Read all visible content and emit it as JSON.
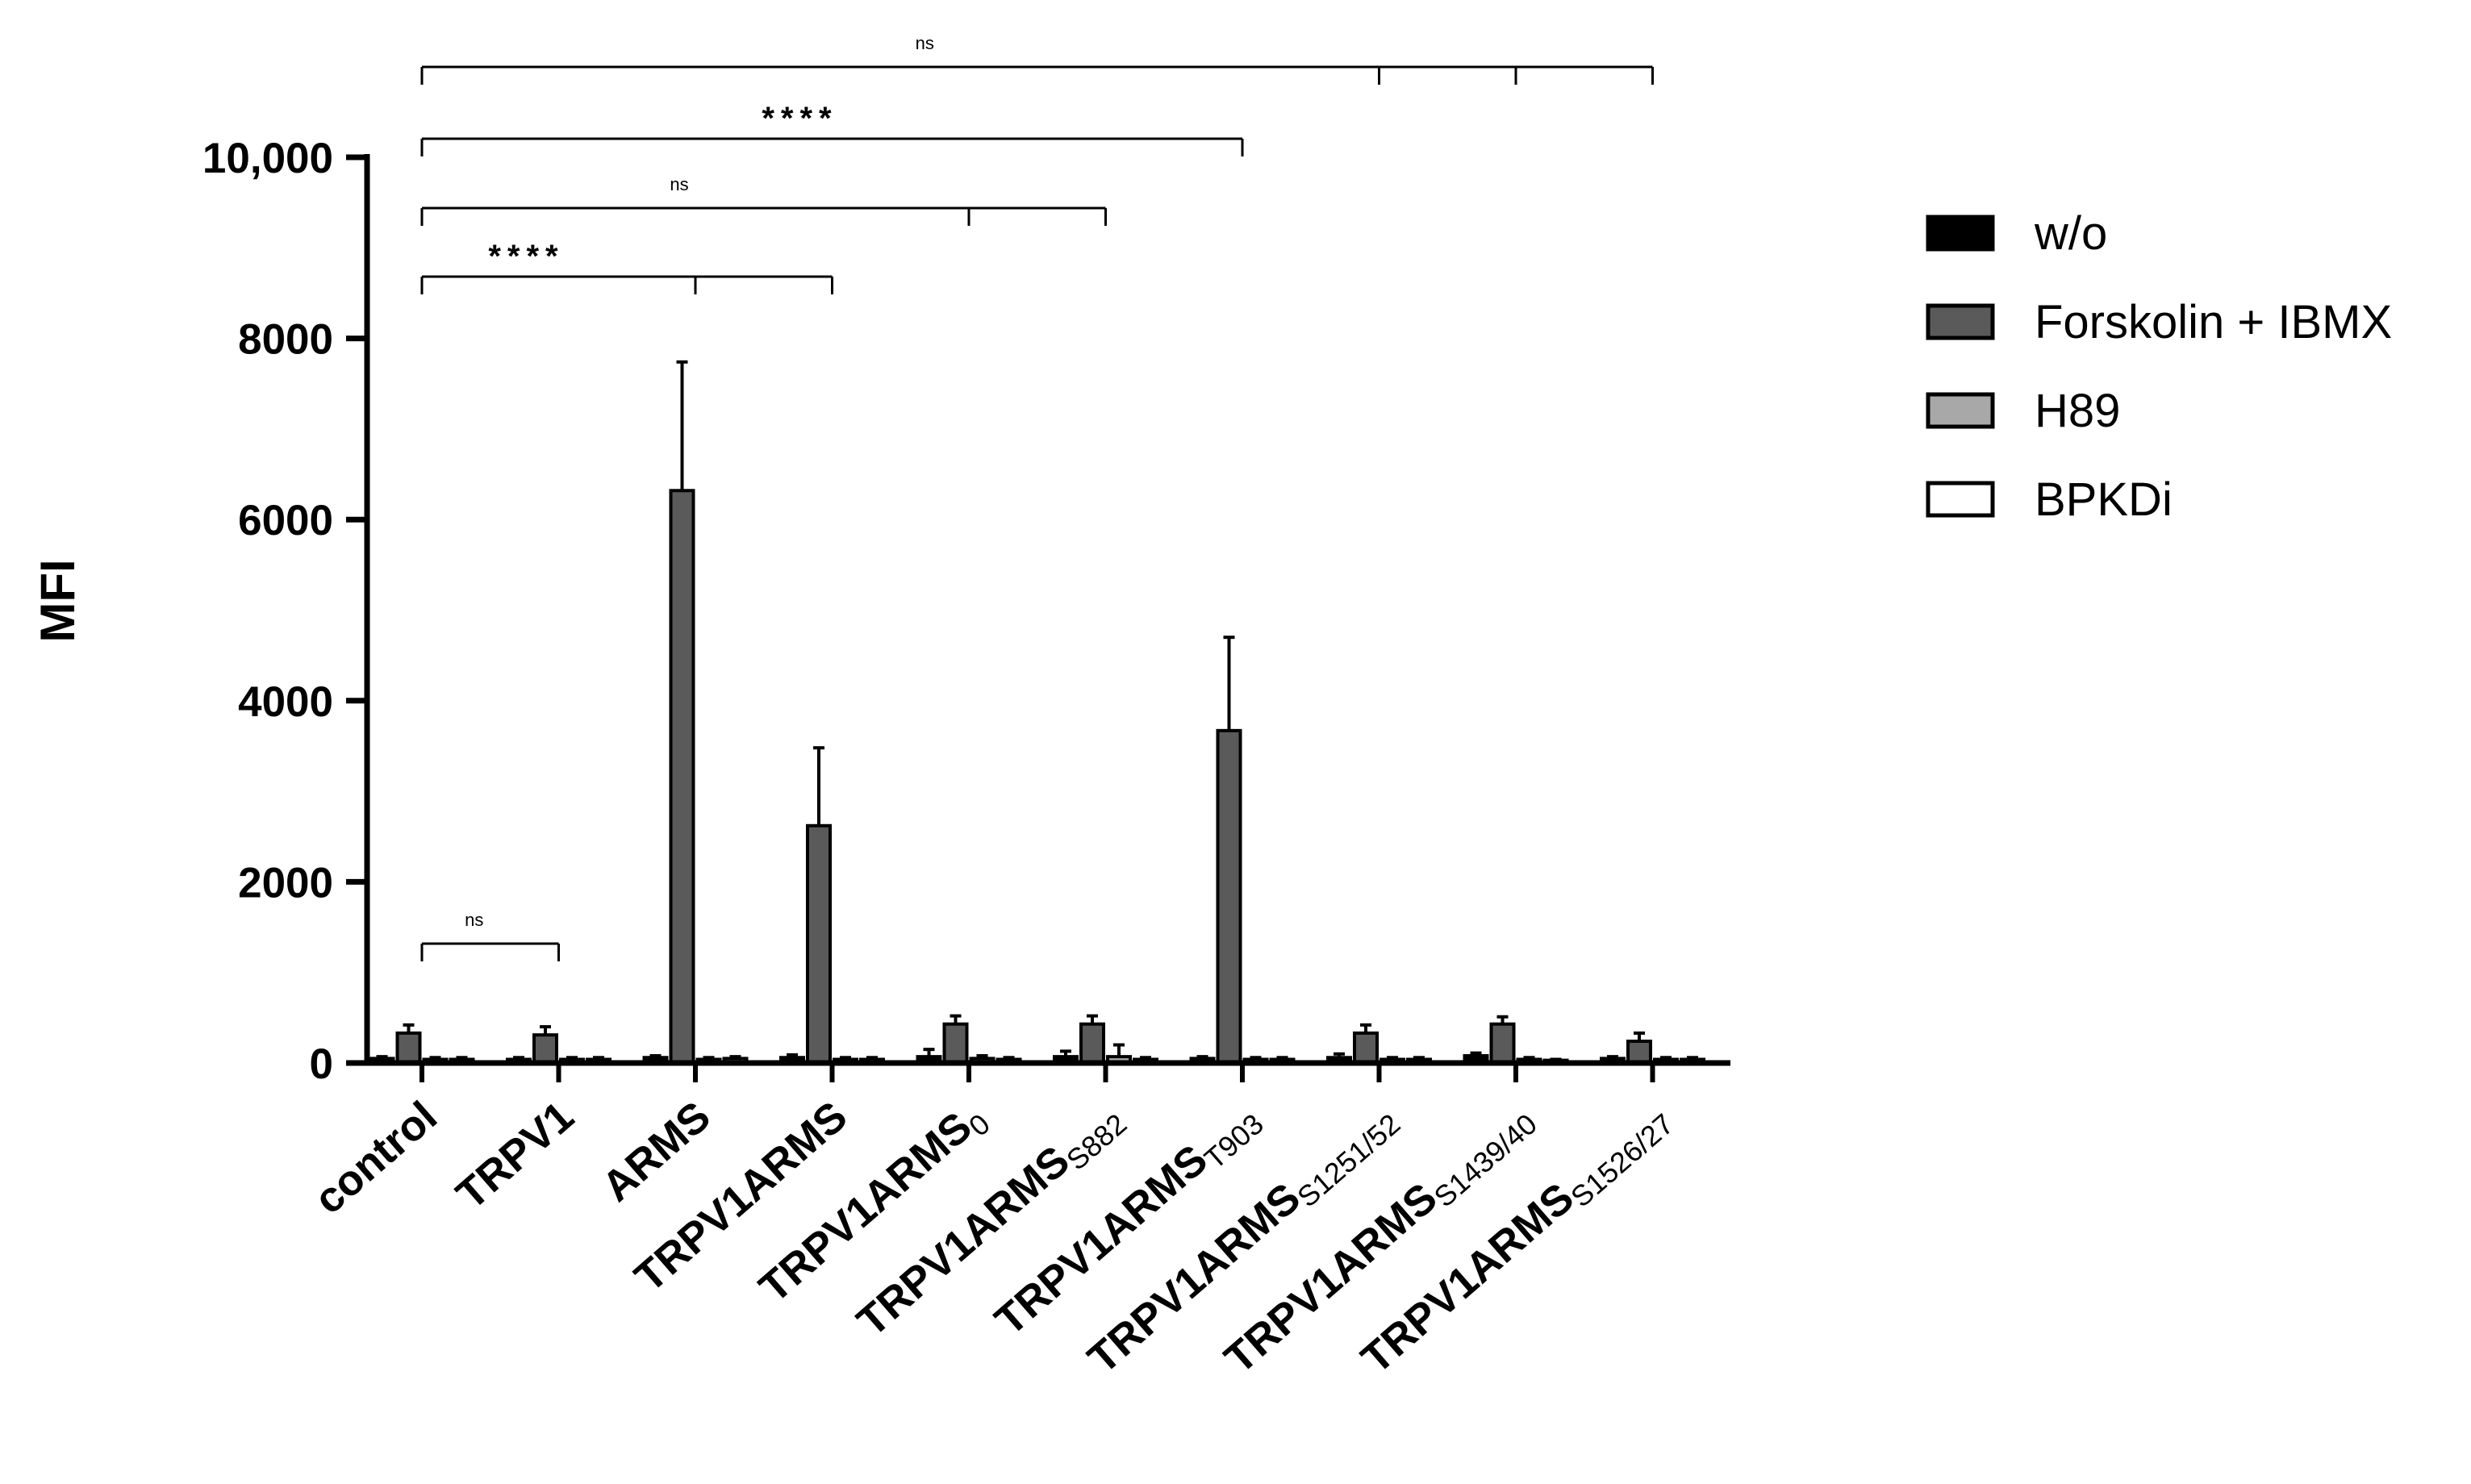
{
  "chart_data": {
    "type": "bar",
    "title": "",
    "xlabel": "",
    "ylabel": "MFI",
    "ylim": [
      0,
      10000
    ],
    "y_ticks": [
      {
        "value": 0,
        "label": "0"
      },
      {
        "value": 2000,
        "label": "2000"
      },
      {
        "value": 4000,
        "label": "4000"
      },
      {
        "value": 6000,
        "label": "6000"
      },
      {
        "value": 8000,
        "label": "8000"
      },
      {
        "value": 10000,
        "label": "10,000"
      }
    ],
    "categories": [
      {
        "main": "control",
        "sub": ""
      },
      {
        "main": "TRPV1",
        "sub": ""
      },
      {
        "main": "ARMS",
        "sub": ""
      },
      {
        "main": "TRPV1ARMS",
        "sub": ""
      },
      {
        "main": "TRPV1ARMS",
        "sub": "0"
      },
      {
        "main": "TRPV1ARMS",
        "sub": "S882"
      },
      {
        "main": "TRPV1ARMS",
        "sub": "T903"
      },
      {
        "main": "TRPV1ARMS",
        "sub": "S1251/52"
      },
      {
        "main": "TRPV1ARMS",
        "sub": "S1439/40"
      },
      {
        "main": "TRPV1ARMS",
        "sub": "S1526/27"
      }
    ],
    "series": [
      {
        "name": "w/o",
        "color": "#000000",
        "values": [
          50,
          40,
          60,
          60,
          70,
          70,
          50,
          60,
          80,
          50
        ],
        "errors": [
          20,
          20,
          20,
          30,
          80,
          60,
          20,
          40,
          30,
          20
        ]
      },
      {
        "name": "Forskolin + IBMX",
        "color": "#5a5a5a",
        "values": [
          330,
          310,
          6320,
          2620,
          430,
          430,
          3670,
          330,
          430,
          240
        ],
        "errors": [
          90,
          90,
          1420,
          860,
          90,
          90,
          1030,
          90,
          80,
          90
        ]
      },
      {
        "name": "H89",
        "color": "#a8a8a8",
        "values": [
          40,
          40,
          40,
          40,
          50,
          70,
          40,
          40,
          40,
          40
        ],
        "errors": [
          20,
          20,
          20,
          20,
          30,
          130,
          20,
          20,
          20,
          20
        ]
      },
      {
        "name": "BPKDi",
        "color": "#ffffff",
        "values": [
          40,
          40,
          50,
          40,
          40,
          40,
          40,
          40,
          30,
          40
        ],
        "errors": [
          20,
          20,
          20,
          20,
          20,
          20,
          20,
          20,
          10,
          20
        ]
      }
    ],
    "significance": [
      {
        "label": "ns",
        "from": 0,
        "to": [
          1
        ],
        "level": "low"
      },
      {
        "label": "****",
        "from": 0,
        "to": [
          2,
          3
        ],
        "level": 1
      },
      {
        "label": "ns",
        "from": 0,
        "to": [
          4,
          5
        ],
        "level": 2
      },
      {
        "label": "****",
        "from": 0,
        "to": [
          6
        ],
        "level": 3
      },
      {
        "label": "ns",
        "from": 0,
        "to": [
          7,
          8,
          9
        ],
        "level": 4
      }
    ],
    "legend": {
      "position": "right"
    }
  }
}
